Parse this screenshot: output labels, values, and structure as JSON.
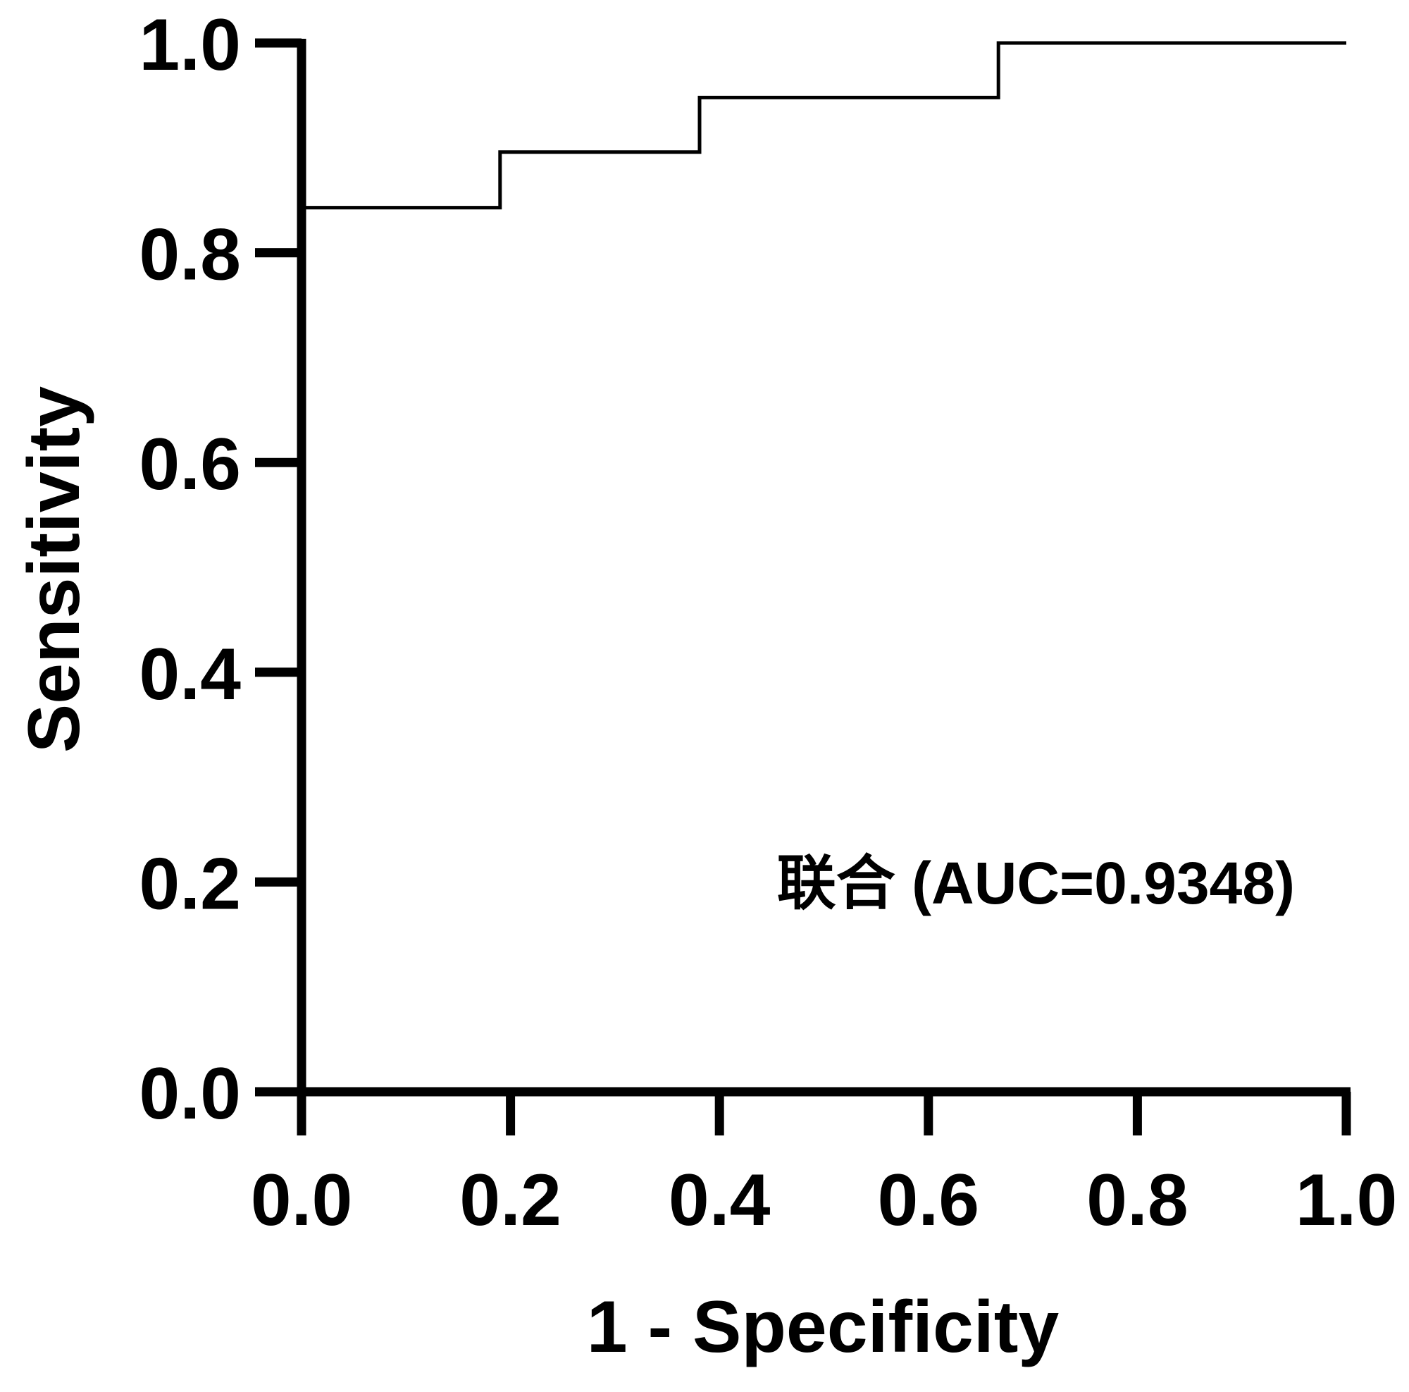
{
  "chart_data": {
    "type": "line",
    "title": "",
    "xlabel": "1 - Specificity",
    "ylabel": "Sensitivity",
    "xlim": [
      0,
      1
    ],
    "ylim": [
      0,
      1
    ],
    "x_ticks": [
      "0.0",
      "0.2",
      "0.4",
      "0.6",
      "0.8",
      "1.0"
    ],
    "y_ticks": [
      "0.0",
      "0.2",
      "0.4",
      "0.6",
      "0.8",
      "1.0"
    ],
    "grid": false,
    "series": [
      {
        "name": "",
        "step": true,
        "x": [
          0.0,
          0.0,
          0.19,
          0.19,
          0.381,
          0.381,
          0.667,
          0.667,
          1.0
        ],
        "y": [
          0.0,
          0.843,
          0.843,
          0.896,
          0.896,
          0.948,
          0.948,
          1.0,
          1.0
        ]
      }
    ],
    "annotation": "联合 (AUC=0.9348)"
  },
  "colors": {
    "line": "#000000",
    "axis": "#000000",
    "background": "#ffffff"
  }
}
